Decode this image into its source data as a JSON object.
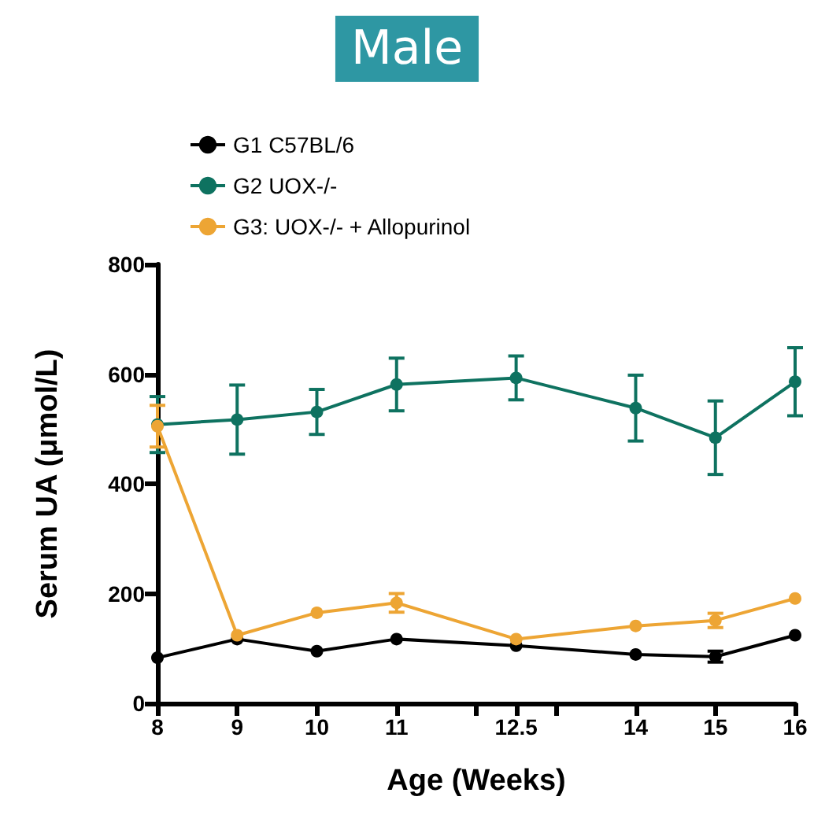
{
  "chart_data": {
    "type": "line",
    "title": "Male",
    "xlabel": "Age (Weeks)",
    "ylabel": "Serum UA (μmol/L)",
    "x": [
      8,
      9,
      10,
      11,
      12.5,
      14,
      15,
      16
    ],
    "xlim": [
      8,
      16
    ],
    "xticks": [
      8,
      9,
      10,
      11,
      {
        "value": 12,
        "label": null
      },
      12.5,
      {
        "value": 13,
        "label": null
      },
      14,
      15,
      16
    ],
    "ylim": [
      0,
      800
    ],
    "yticks": [
      0,
      200,
      400,
      600,
      800
    ],
    "grid": false,
    "legend": "top left",
    "marker": "circle",
    "line_style": "solid",
    "series": [
      {
        "name": "G1 C57BL/6",
        "color": "#000000",
        "values": [
          83,
          117,
          95,
          117,
          105,
          89,
          85,
          124
        ],
        "errors": [
          null,
          null,
          null,
          null,
          null,
          null,
          10,
          null
        ]
      },
      {
        "name": "G2 UOX-/-",
        "color": "#0e7260",
        "values": [
          508,
          517,
          531,
          581,
          593,
          538,
          484,
          586
        ],
        "errors": [
          51,
          63,
          41,
          48,
          40,
          60,
          67,
          62
        ]
      },
      {
        "name": "G3: UOX-/- + Allopurinol",
        "color": "#eda534",
        "values": [
          505,
          124,
          165,
          183,
          117,
          141,
          151,
          191
        ],
        "errors": [
          38,
          null,
          null,
          17,
          null,
          null,
          13,
          null
        ]
      }
    ]
  }
}
